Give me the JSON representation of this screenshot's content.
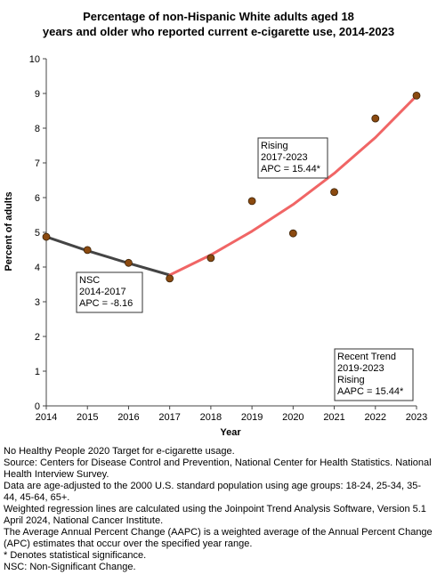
{
  "title_lines": [
    "Percentage of non-Hispanic White adults aged 18",
    "years and older who reported current e-cigarette use, 2014-2023"
  ],
  "chart_data": {
    "type": "scatter",
    "title": "Percentage of non-Hispanic White adults aged 18 years and older who reported current e-cigarette use, 2014-2023",
    "xlabel": "Year",
    "ylabel": "Percent of adults",
    "xlim": [
      2014,
      2023
    ],
    "ylim": [
      0,
      10
    ],
    "x_ticks": [
      2014,
      2015,
      2016,
      2017,
      2018,
      2019,
      2020,
      2021,
      2022,
      2023
    ],
    "y_ticks": [
      0,
      1,
      2,
      3,
      4,
      5,
      6,
      7,
      8,
      9,
      10
    ],
    "grid": false,
    "series": [
      {
        "kind": "observed",
        "x": [
          2014,
          2015,
          2016,
          2017,
          2018,
          2019,
          2020,
          2021,
          2022,
          2023
        ],
        "y": [
          4.87,
          4.49,
          4.12,
          3.67,
          4.26,
          5.9,
          4.97,
          6.16,
          8.28,
          8.94
        ],
        "color": "#8B4A10"
      },
      {
        "kind": "regression",
        "x": [
          2014,
          2015,
          2016,
          2017
        ],
        "y": [
          4.87,
          4.47,
          4.11,
          3.77
        ],
        "color": "#444444"
      },
      {
        "kind": "regression",
        "x": [
          2017,
          2018,
          2019,
          2020,
          2021,
          2022,
          2023
        ],
        "y": [
          3.77,
          4.35,
          5.03,
          5.8,
          6.7,
          7.73,
          8.93
        ],
        "color": "#F06565"
      }
    ],
    "annotations": [
      {
        "lines": [
          "Rising",
          "2017-2023",
          "APC = 15.44*"
        ]
      },
      {
        "lines": [
          "NSC",
          "2014-2017",
          "APC = -8.16"
        ]
      },
      {
        "lines": [
          "Recent Trend",
          "2019-2023",
          "Rising",
          "AAPC = 15.44*"
        ]
      }
    ]
  },
  "notes": [
    "No Healthy People 2020 Target for e-cigarette usage.",
    "Source: Centers for Disease Control and Prevention, National Center for Health Statistics. National Health Interview Survey.",
    "Data are age-adjusted to the 2000 U.S. standard population using age groups: 18-24, 25-34, 35-44, 45-64, 65+.",
    "Weighted regression lines are calculated using the Joinpoint Trend Analysis Software, Version 5.1 April 2024, National Cancer Institute.",
    "The Average Annual Percent Change (AAPC) is a weighted average of the Annual Percent Change (APC) estimates that occur over the specified year range.",
    "* Denotes statistical significance.",
    "NSC: Non-Significant Change."
  ]
}
